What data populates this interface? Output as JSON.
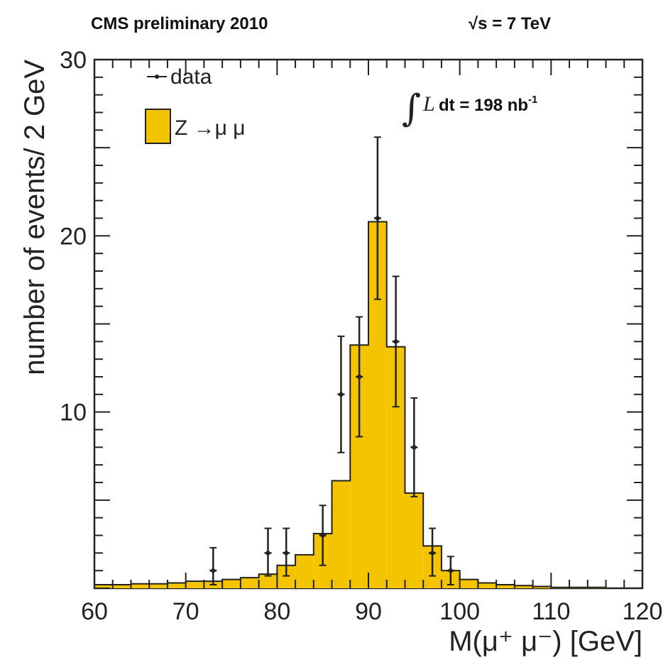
{
  "header": {
    "left": "CMS preliminary 2010",
    "right_sqrt": "√s",
    "right_value": " = 7 TeV"
  },
  "legend": {
    "data_label": "data",
    "mc_label": "Z →μ μ"
  },
  "lumi": {
    "integral": "∫",
    "symbol": "L",
    "text": " dt = 198 nb",
    "exponent": "-1"
  },
  "colors": {
    "fill": "#f5c400",
    "edge": "#222222",
    "data": "#222222"
  },
  "chart_data": {
    "type": "bar",
    "subtype": "histogram",
    "xlabel": "M(μ⁺ μ⁻) [GeV]",
    "ylabel": "number of events/ 2 GeV",
    "xlim": [
      60,
      120
    ],
    "ylim": [
      0,
      30
    ],
    "x_ticks": [
      "60",
      "70",
      "80",
      "90",
      "100",
      "110",
      "120"
    ],
    "y_ticks": [
      "10",
      "20",
      "30"
    ],
    "bin_width": 2,
    "bin_edges": [
      60,
      62,
      64,
      66,
      68,
      70,
      72,
      74,
      76,
      78,
      80,
      82,
      84,
      86,
      88,
      90,
      92,
      94,
      96,
      98,
      100,
      102,
      104,
      106,
      108,
      110,
      112,
      114,
      116,
      118,
      120
    ],
    "series": [
      {
        "name": "Z →μ μ",
        "type": "histogram",
        "values": [
          0.2,
          0.2,
          0.25,
          0.25,
          0.3,
          0.4,
          0.4,
          0.5,
          0.6,
          0.8,
          1.3,
          1.9,
          3.1,
          6.1,
          13.8,
          20.8,
          13.7,
          5.4,
          2.4,
          1.0,
          0.5,
          0.3,
          0.2,
          0.15,
          0.1,
          0.05,
          0.05,
          0.05,
          0.0,
          0.0
        ]
      },
      {
        "name": "data",
        "type": "points_with_errors",
        "points": [
          {
            "x": 73,
            "y": 1,
            "lo": 0.2,
            "hi": 2.3
          },
          {
            "x": 79,
            "y": 2,
            "lo": 0.7,
            "hi": 3.4
          },
          {
            "x": 81,
            "y": 2,
            "lo": 0.7,
            "hi": 3.4
          },
          {
            "x": 85,
            "y": 3,
            "lo": 1.3,
            "hi": 4.7
          },
          {
            "x": 87,
            "y": 11,
            "lo": 7.7,
            "hi": 14.3
          },
          {
            "x": 89,
            "y": 12,
            "lo": 8.6,
            "hi": 15.4
          },
          {
            "x": 91,
            "y": 21,
            "lo": 16.4,
            "hi": 25.6
          },
          {
            "x": 93,
            "y": 14,
            "lo": 10.3,
            "hi": 17.7
          },
          {
            "x": 95,
            "y": 8,
            "lo": 5.2,
            "hi": 10.8
          },
          {
            "x": 97,
            "y": 2,
            "lo": 0.7,
            "hi": 3.4
          },
          {
            "x": 99,
            "y": 1,
            "lo": 0.2,
            "hi": 1.8
          }
        ]
      }
    ],
    "legend_position": "top-left",
    "grid": false
  }
}
